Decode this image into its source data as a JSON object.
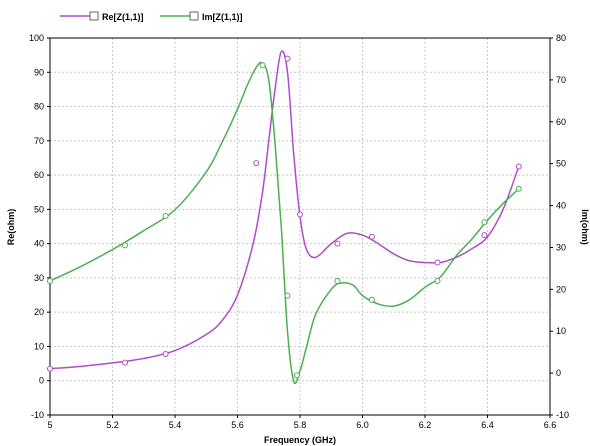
{
  "chart_data": {
    "type": "line",
    "title": "",
    "xlabel": "Frequency (GHz)",
    "ylabel_left": "Re(ohm)",
    "ylabel_right": "Im(ohm)",
    "xlim": [
      5.0,
      6.6
    ],
    "ylim_left": [
      -10,
      100
    ],
    "ylim_right": [
      -10,
      80
    ],
    "x_ticks": [
      "5",
      "5.2",
      "5.4",
      "5.6",
      "5.8",
      "6.0",
      "6.2",
      "6.4",
      "6.6"
    ],
    "y_ticks_left": [
      "-10",
      "0",
      "10",
      "20",
      "30",
      "40",
      "50",
      "60",
      "70",
      "80",
      "90",
      "100"
    ],
    "y_ticks_right": [
      "-10",
      "0",
      "10",
      "20",
      "30",
      "40",
      "50",
      "60",
      "70",
      "80"
    ],
    "grid": true,
    "legend_position": "top-left",
    "series": [
      {
        "name": "Re[Z(1,1)]",
        "color": "#b04cc8",
        "axis": "left",
        "x": [
          5.0,
          5.1,
          5.2,
          5.3,
          5.4,
          5.5,
          5.55,
          5.6,
          5.65,
          5.68,
          5.7,
          5.72,
          5.74,
          5.76,
          5.78,
          5.8,
          5.82,
          5.85,
          5.9,
          5.95,
          6.0,
          6.05,
          6.1,
          6.15,
          6.2,
          6.25,
          6.3,
          6.35,
          6.4,
          6.45,
          6.5
        ],
        "y": [
          3.5,
          4.2,
          5.2,
          6.5,
          8.8,
          13.5,
          17.5,
          25.0,
          40.0,
          55.0,
          70.0,
          85.0,
          96.0,
          90.0,
          66.0,
          48.0,
          38.5,
          36.0,
          40.0,
          43.0,
          42.5,
          40.0,
          37.0,
          35.0,
          34.5,
          34.5,
          36.0,
          38.5,
          42.0,
          50.0,
          62.5
        ],
        "markers": [
          [
            5.0,
            3.5
          ],
          [
            5.24,
            5.3
          ],
          [
            5.37,
            7.8
          ],
          [
            5.66,
            63.5
          ],
          [
            5.76,
            94.0
          ],
          [
            5.8,
            48.5
          ],
          [
            5.92,
            40.0
          ],
          [
            6.03,
            42.0
          ],
          [
            6.24,
            34.5
          ],
          [
            6.39,
            42.5
          ],
          [
            6.5,
            62.5
          ]
        ]
      },
      {
        "name": "Im[Z(1,1)]",
        "color": "#4caf50",
        "axis": "right",
        "x": [
          5.0,
          5.1,
          5.2,
          5.3,
          5.4,
          5.5,
          5.55,
          5.6,
          5.63,
          5.66,
          5.68,
          5.7,
          5.72,
          5.74,
          5.76,
          5.78,
          5.8,
          5.82,
          5.85,
          5.9,
          5.93,
          5.97,
          6.0,
          6.05,
          6.1,
          6.15,
          6.2,
          6.25,
          6.3,
          6.35,
          6.4,
          6.45,
          6.5
        ],
        "y": [
          22.0,
          25.5,
          29.5,
          34.0,
          39.0,
          48.0,
          55.0,
          63.0,
          68.5,
          73.0,
          74.0,
          70.0,
          55.0,
          35.0,
          10.0,
          -2.0,
          0.5,
          6.0,
          14.0,
          20.0,
          21.5,
          21.0,
          18.5,
          16.5,
          16.0,
          17.5,
          20.5,
          23.0,
          28.0,
          32.0,
          36.5,
          40.5,
          44.0
        ],
        "markers": [
          [
            5.0,
            22.0
          ],
          [
            5.24,
            30.5
          ],
          [
            5.37,
            37.5
          ],
          [
            5.68,
            73.5
          ],
          [
            5.76,
            18.5
          ],
          [
            5.79,
            -0.5
          ],
          [
            5.92,
            22.0
          ],
          [
            6.03,
            17.5
          ],
          [
            6.24,
            22.0
          ],
          [
            6.39,
            36.0
          ],
          [
            6.5,
            44.0
          ]
        ]
      }
    ]
  }
}
